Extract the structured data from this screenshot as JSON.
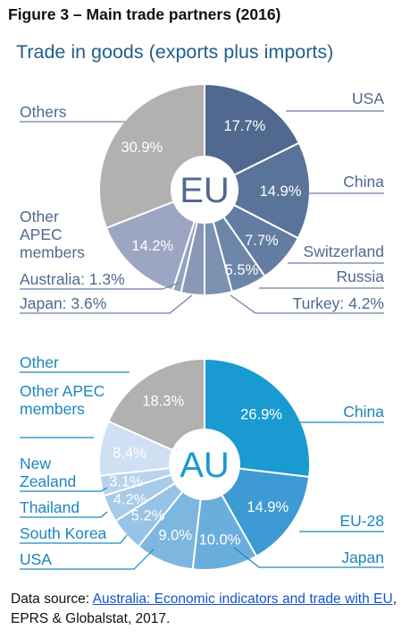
{
  "figure": {
    "title": "Figure 3 – Main trade partners (2016)",
    "subtitle": "Trade in goods (exports plus imports)"
  },
  "source": {
    "prefix": "Data source: ",
    "link_text": "Australia: Economic indicators and trade with EU",
    "suffix": ", EPRS & Globalstat, 2017."
  },
  "chart_data": [
    {
      "type": "pie",
      "center_label": "EU",
      "slices": [
        {
          "name": "USA",
          "value": 17.7,
          "value_label": "17.7%",
          "color": "#51698f"
        },
        {
          "name": "China",
          "value": 14.9,
          "value_label": "14.9%",
          "color": "#5a7399"
        },
        {
          "name": "Switzerland",
          "value": 7.7,
          "value_label": "7.7%",
          "color": "#637ca1"
        },
        {
          "name": "Russia",
          "value": 5.5,
          "value_label": "5.5%",
          "color": "#6d85a8"
        },
        {
          "name": "Turkey: 4.2%",
          "value": 4.2,
          "value_label": "",
          "color": "#7c90b0"
        },
        {
          "name": "Japan: 3.6%",
          "value": 3.6,
          "value_label": "",
          "color": "#8898b6"
        },
        {
          "name": "Australia: 1.3%",
          "value": 1.3,
          "value_label": "",
          "color": "#95a2be"
        },
        {
          "name": "Other APEC members",
          "value": 14.2,
          "value_label": "14.2%",
          "color": "#9ca6c2"
        },
        {
          "name": "Others",
          "value": 30.9,
          "value_label": "30.9%",
          "color": "#b3b0b0"
        }
      ]
    },
    {
      "type": "pie",
      "center_label": "AU",
      "slices": [
        {
          "name": "China",
          "value": 26.9,
          "value_label": "26.9%",
          "color": "#199ad1"
        },
        {
          "name": "EU-28",
          "value": 14.9,
          "value_label": "14.9%",
          "color": "#3d9ad3"
        },
        {
          "name": "Japan",
          "value": 10.0,
          "value_label": "10.0%",
          "color": "#6aaedd"
        },
        {
          "name": "USA",
          "value": 9.0,
          "value_label": "9.0%",
          "color": "#7db6df"
        },
        {
          "name": "South Korea",
          "value": 5.2,
          "value_label": "5.2%",
          "color": "#97c3e6"
        },
        {
          "name": "Thailand",
          "value": 4.2,
          "value_label": "4.2%",
          "color": "#a7cbe8"
        },
        {
          "name": "New Zealand",
          "value": 3.1,
          "value_label": "3.1%",
          "color": "#b8d3ec"
        },
        {
          "name": "Other APEC members",
          "value": 8.4,
          "value_label": "8.4%",
          "color": "#cfe0f2"
        },
        {
          "name": "Other",
          "value": 18.3,
          "value_label": "18.3%",
          "color": "#b3b0b0"
        }
      ]
    }
  ]
}
